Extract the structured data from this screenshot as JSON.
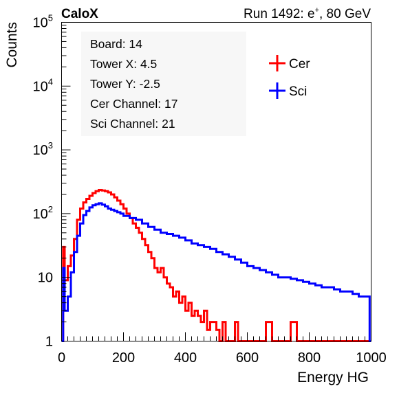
{
  "chart_data": {
    "type": "histogram-step",
    "title_left": "CaloX",
    "title_right_prefix": "Run 1492: e",
    "title_right_sup": "+",
    "title_right_suffix": ", 80 GeV",
    "xlabel": "Energy HG",
    "ylabel": "Counts",
    "xlim": [
      0,
      1000
    ],
    "ylim": [
      1,
      100000
    ],
    "yscale": "log",
    "grid": false,
    "x_ticks": [
      "0",
      "200",
      "400",
      "600",
      "800",
      "1000"
    ],
    "y_ticks": [
      {
        "base": "1",
        "exp": ""
      },
      {
        "base": "10",
        "exp": ""
      },
      {
        "base": "10",
        "exp": "2"
      },
      {
        "base": "10",
        "exp": "3"
      },
      {
        "base": "10",
        "exp": "4"
      },
      {
        "base": "10",
        "exp": "5"
      }
    ],
    "info_box": [
      "Board: 14",
      "Tower X: 4.5",
      "Tower Y: -2.5",
      "Cer Channel: 17",
      "Sci Channel: 21"
    ],
    "legend_position": "top-right",
    "series": [
      {
        "name": "Cer",
        "color": "#ff0000",
        "points": [
          [
            0,
            1
          ],
          [
            5,
            30
          ],
          [
            10,
            9
          ],
          [
            20,
            15
          ],
          [
            30,
            22
          ],
          [
            40,
            40
          ],
          [
            50,
            80
          ],
          [
            60,
            120
          ],
          [
            70,
            150
          ],
          [
            80,
            170
          ],
          [
            90,
            190
          ],
          [
            100,
            210
          ],
          [
            110,
            225
          ],
          [
            120,
            235
          ],
          [
            130,
            230
          ],
          [
            140,
            225
          ],
          [
            150,
            215
          ],
          [
            160,
            200
          ],
          [
            170,
            180
          ],
          [
            180,
            160
          ],
          [
            190,
            140
          ],
          [
            200,
            120
          ],
          [
            210,
            100
          ],
          [
            220,
            85
          ],
          [
            230,
            70
          ],
          [
            240,
            60
          ],
          [
            250,
            50
          ],
          [
            260,
            40
          ],
          [
            270,
            32
          ],
          [
            280,
            25
          ],
          [
            290,
            20
          ],
          [
            300,
            14
          ],
          [
            310,
            12
          ],
          [
            320,
            14
          ],
          [
            330,
            10
          ],
          [
            340,
            8
          ],
          [
            350,
            7
          ],
          [
            360,
            5
          ],
          [
            370,
            6
          ],
          [
            380,
            4
          ],
          [
            390,
            5
          ],
          [
            400,
            3
          ],
          [
            410,
            4
          ],
          [
            420,
            2.5
          ],
          [
            430,
            3
          ],
          [
            440,
            2.5
          ],
          [
            450,
            2
          ],
          [
            460,
            3
          ],
          [
            470,
            1.5
          ],
          [
            480,
            2
          ],
          [
            490,
            2
          ],
          [
            500,
            1.5
          ],
          [
            510,
            1
          ],
          [
            520,
            2
          ],
          [
            530,
            1
          ],
          [
            540,
            1
          ],
          [
            550,
            1
          ],
          [
            560,
            2
          ],
          [
            570,
            1
          ],
          [
            580,
            1
          ],
          [
            590,
            1
          ],
          [
            600,
            1
          ],
          [
            620,
            1
          ],
          [
            650,
            1
          ],
          [
            660,
            2
          ],
          [
            680,
            1
          ],
          [
            700,
            1
          ],
          [
            720,
            1
          ],
          [
            740,
            2
          ],
          [
            760,
            1
          ],
          [
            780,
            1
          ],
          [
            800,
            1
          ],
          [
            850,
            1
          ],
          [
            900,
            1
          ],
          [
            950,
            1
          ],
          [
            995,
            1
          ]
        ]
      },
      {
        "name": "Sci",
        "color": "#0000ff",
        "points": [
          [
            0,
            1
          ],
          [
            5,
            14
          ],
          [
            10,
            3
          ],
          [
            20,
            5
          ],
          [
            30,
            12
          ],
          [
            40,
            25
          ],
          [
            50,
            45
          ],
          [
            60,
            70
          ],
          [
            70,
            95
          ],
          [
            80,
            110
          ],
          [
            90,
            125
          ],
          [
            100,
            135
          ],
          [
            110,
            140
          ],
          [
            120,
            145
          ],
          [
            130,
            138
          ],
          [
            140,
            130
          ],
          [
            150,
            120
          ],
          [
            160,
            115
          ],
          [
            170,
            110
          ],
          [
            180,
            105
          ],
          [
            190,
            100
          ],
          [
            200,
            92
          ],
          [
            220,
            85
          ],
          [
            240,
            80
          ],
          [
            260,
            70
          ],
          [
            280,
            62
          ],
          [
            300,
            56
          ],
          [
            320,
            50
          ],
          [
            340,
            48
          ],
          [
            360,
            45
          ],
          [
            380,
            42
          ],
          [
            400,
            38
          ],
          [
            420,
            34
          ],
          [
            440,
            32
          ],
          [
            460,
            30
          ],
          [
            480,
            28
          ],
          [
            500,
            25
          ],
          [
            520,
            23
          ],
          [
            540,
            21
          ],
          [
            560,
            19
          ],
          [
            580,
            17
          ],
          [
            600,
            15
          ],
          [
            620,
            14
          ],
          [
            640,
            13
          ],
          [
            660,
            12
          ],
          [
            680,
            11
          ],
          [
            700,
            10
          ],
          [
            720,
            10
          ],
          [
            740,
            9.5
          ],
          [
            760,
            9
          ],
          [
            780,
            8.5
          ],
          [
            800,
            8
          ],
          [
            820,
            7.5
          ],
          [
            840,
            7
          ],
          [
            860,
            7
          ],
          [
            880,
            6.5
          ],
          [
            900,
            6
          ],
          [
            920,
            6
          ],
          [
            940,
            5.5
          ],
          [
            960,
            5
          ],
          [
            980,
            5
          ],
          [
            995,
            1
          ]
        ]
      }
    ]
  }
}
